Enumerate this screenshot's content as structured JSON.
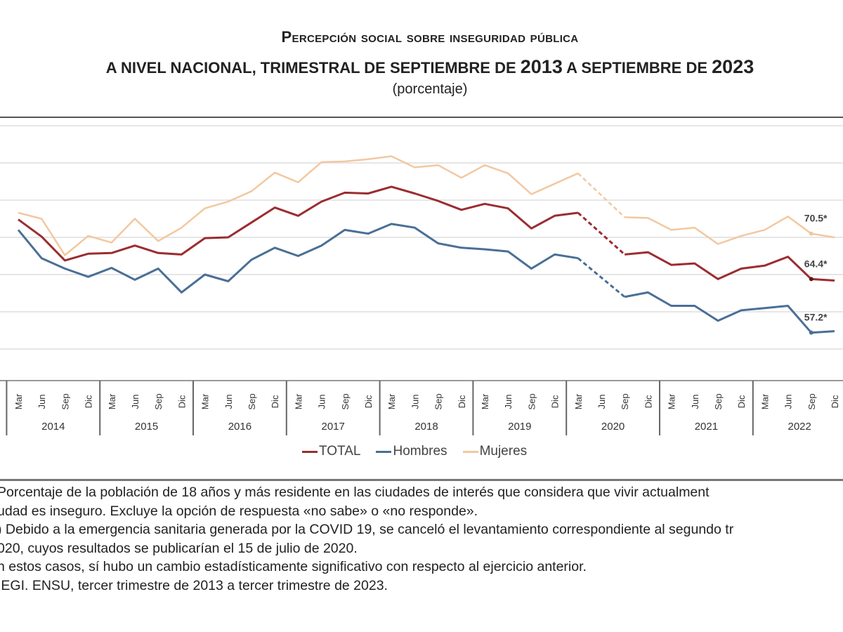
{
  "title": {
    "line1": "Percepción social sobre inseguridad pública",
    "line2_a": "A NIVEL NACIONAL, TRIMESTRAL DE SEPTIEMBRE DE ",
    "line2_year1": "2013",
    "line2_b": " A SEPTIEMBRE DE ",
    "line2_year2": "2023",
    "subtitle": "(porcentaje)"
  },
  "chart_data": {
    "type": "line",
    "title": "Percepción social sobre inseguridad pública a nivel nacional, trimestral de septiembre de 2013 a septiembre de 2023",
    "ylabel": "",
    "xlabel": "",
    "ylim": [
      55,
      86
    ],
    "grid": true,
    "legend_position": "bottom",
    "years": [
      "2014",
      "2015",
      "2016",
      "2017",
      "2018",
      "2019",
      "2020",
      "2021",
      "2022"
    ],
    "months": [
      "Mar",
      "Jun",
      "Sep",
      "Dic"
    ],
    "categories": [
      "Mar 2014",
      "Jun 2014",
      "Sep 2014",
      "Dic 2014",
      "Mar 2015",
      "Jun 2015",
      "Sep 2015",
      "Dic 2015",
      "Mar 2016",
      "Jun 2016",
      "Sep 2016",
      "Dic 2016",
      "Mar 2017",
      "Jun 2017",
      "Sep 2017",
      "Dic 2017",
      "Mar 2018",
      "Jun 2018",
      "Sep 2018",
      "Dic 2018",
      "Mar 2019",
      "Jun 2019",
      "Sep 2019",
      "Dic 2019",
      "Mar 2020",
      "Jun 2020",
      "Sep 2020",
      "Dic 2020",
      "Mar 2021",
      "Jun 2021",
      "Sep 2021",
      "Dic 2021",
      "Mar 2022",
      "Jun 2022",
      "Sep 2022",
      "Dic 2022"
    ],
    "missing_note": "Jun 2020 sin levantamiento (línea punteada)",
    "series": [
      {
        "name": "TOTAL",
        "color": "#9b2d30",
        "values": [
          72.4,
          70.1,
          66.9,
          67.8,
          67.9,
          68.9,
          67.9,
          67.7,
          69.9,
          70.0,
          72.0,
          74.0,
          72.9,
          74.8,
          76.0,
          75.9,
          76.8,
          75.9,
          74.9,
          73.7,
          74.5,
          73.9,
          71.2,
          72.9,
          73.3,
          null,
          67.7,
          68.0,
          66.3,
          66.5,
          64.4,
          65.8,
          66.2,
          67.4,
          64.4,
          64.2
        ]
      },
      {
        "name": "Hombres",
        "color": "#4a6f96",
        "values": [
          71.0,
          67.2,
          65.8,
          64.7,
          65.9,
          64.3,
          65.8,
          62.6,
          65.0,
          64.1,
          67.0,
          68.6,
          67.5,
          68.9,
          71.0,
          70.5,
          71.8,
          71.3,
          69.2,
          68.6,
          68.4,
          68.1,
          65.8,
          67.7,
          67.2,
          null,
          62.0,
          62.6,
          60.8,
          60.8,
          58.8,
          60.2,
          60.5,
          60.8,
          57.2,
          57.4
        ]
      },
      {
        "name": "Mujeres",
        "color": "#f2c8a0",
        "values": [
          73.3,
          72.5,
          67.6,
          70.2,
          69.3,
          72.5,
          69.5,
          71.3,
          73.9,
          74.8,
          76.2,
          78.7,
          77.4,
          80.1,
          80.2,
          80.5,
          80.9,
          79.4,
          79.7,
          78.0,
          79.7,
          78.6,
          75.8,
          77.2,
          78.6,
          null,
          72.7,
          72.6,
          71.0,
          71.3,
          69.1,
          70.2,
          71.0,
          72.8,
          70.5,
          70.0
        ]
      }
    ],
    "annotations": [
      {
        "series": "Mujeres",
        "category": "Sep 2022",
        "text": "70.5*"
      },
      {
        "series": "TOTAL",
        "category": "Sep 2022",
        "text": "64.4*"
      },
      {
        "series": "Hombres",
        "category": "Sep 2022",
        "text": "57.2*"
      }
    ]
  },
  "legend": {
    "items": [
      {
        "label": "TOTAL",
        "color": "#9b2d30"
      },
      {
        "label": "Hombres",
        "color": "#4a6f96"
      },
      {
        "label": "Mujeres",
        "color": "#f2c8a0"
      }
    ]
  },
  "notes": [
    " Porcentaje de la población de 18 años y más residente en las ciudades de interés que considera que vivir actualment",
    "udad es inseguro. Excluye la opción de respuesta «no sabe» o «no responde».",
    ") Debido a la emergencia sanitaria generada por la COVID 19, se canceló el levantamiento correspondiente al segundo tr",
    "020, cuyos resultados se publicarían el 15 de julio de 2020.",
    "n estos casos, sí hubo un cambio estadísticamente significativo con respecto al ejercicio anterior.",
    "IEGI. ENSU, tercer trimestre de 2013 a tercer trimestre de 2023."
  ]
}
